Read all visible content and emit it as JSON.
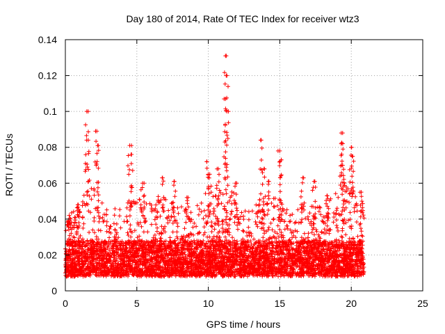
{
  "chart_data": {
    "type": "scatter",
    "title": "Day 180 of 2014, Rate Of TEC Index for receiver wtz3",
    "xlabel": "GPS time / hours",
    "ylabel": "ROTI / TECUs",
    "xlim": [
      0,
      25
    ],
    "ylim": [
      0,
      0.14
    ],
    "x_ticks": [
      "0",
      "5",
      "10",
      "15",
      "20",
      "25"
    ],
    "y_ticks": [
      "0",
      "0.02",
      "0.04",
      "0.06",
      "0.08",
      "0.1",
      "0.12",
      "0.14"
    ],
    "grid": true,
    "marker": "+",
    "color": "#ff0000",
    "data_x_range": [
      0,
      20.9
    ],
    "baseline_range": [
      0.005,
      0.03
    ],
    "peaks": [
      {
        "x": 0.2,
        "y": 0.039
      },
      {
        "x": 0.9,
        "y": 0.048
      },
      {
        "x": 1.5,
        "y": 0.1
      },
      {
        "x": 1.6,
        "y": 0.084
      },
      {
        "x": 2.2,
        "y": 0.089
      },
      {
        "x": 2.3,
        "y": 0.081
      },
      {
        "x": 4.5,
        "y": 0.081
      },
      {
        "x": 4.6,
        "y": 0.076
      },
      {
        "x": 5.4,
        "y": 0.06
      },
      {
        "x": 6.8,
        "y": 0.063
      },
      {
        "x": 7.6,
        "y": 0.061
      },
      {
        "x": 8.5,
        "y": 0.052
      },
      {
        "x": 9.9,
        "y": 0.072
      },
      {
        "x": 10.1,
        "y": 0.065
      },
      {
        "x": 10.7,
        "y": 0.068
      },
      {
        "x": 11.2,
        "y": 0.131
      },
      {
        "x": 11.3,
        "y": 0.12
      },
      {
        "x": 11.2,
        "y": 0.107
      },
      {
        "x": 11.3,
        "y": 0.1
      },
      {
        "x": 11.9,
        "y": 0.06
      },
      {
        "x": 13.7,
        "y": 0.084
      },
      {
        "x": 13.9,
        "y": 0.068
      },
      {
        "x": 14.2,
        "y": 0.061
      },
      {
        "x": 15.0,
        "y": 0.078
      },
      {
        "x": 15.1,
        "y": 0.073
      },
      {
        "x": 16.6,
        "y": 0.063
      },
      {
        "x": 17.4,
        "y": 0.061
      },
      {
        "x": 18.3,
        "y": 0.053
      },
      {
        "x": 19.3,
        "y": 0.088
      },
      {
        "x": 19.4,
        "y": 0.082
      },
      {
        "x": 19.4,
        "y": 0.07
      },
      {
        "x": 20.0,
        "y": 0.08
      },
      {
        "x": 20.1,
        "y": 0.075
      },
      {
        "x": 20.7,
        "y": 0.055
      }
    ],
    "activity_envelope": [
      {
        "x": 0.0,
        "y": 0.036
      },
      {
        "x": 1.0,
        "y": 0.042
      },
      {
        "x": 1.5,
        "y": 0.055
      },
      {
        "x": 2.3,
        "y": 0.05
      },
      {
        "x": 3.0,
        "y": 0.04
      },
      {
        "x": 4.0,
        "y": 0.042
      },
      {
        "x": 4.6,
        "y": 0.05
      },
      {
        "x": 5.5,
        "y": 0.045
      },
      {
        "x": 6.5,
        "y": 0.048
      },
      {
        "x": 7.5,
        "y": 0.046
      },
      {
        "x": 8.5,
        "y": 0.04
      },
      {
        "x": 9.5,
        "y": 0.045
      },
      {
        "x": 10.0,
        "y": 0.05
      },
      {
        "x": 11.2,
        "y": 0.06
      },
      {
        "x": 12.0,
        "y": 0.045
      },
      {
        "x": 13.0,
        "y": 0.04
      },
      {
        "x": 14.0,
        "y": 0.05
      },
      {
        "x": 15.0,
        "y": 0.045
      },
      {
        "x": 16.0,
        "y": 0.042
      },
      {
        "x": 17.0,
        "y": 0.045
      },
      {
        "x": 18.0,
        "y": 0.042
      },
      {
        "x": 19.3,
        "y": 0.055
      },
      {
        "x": 20.0,
        "y": 0.055
      },
      {
        "x": 20.9,
        "y": 0.04
      }
    ]
  }
}
